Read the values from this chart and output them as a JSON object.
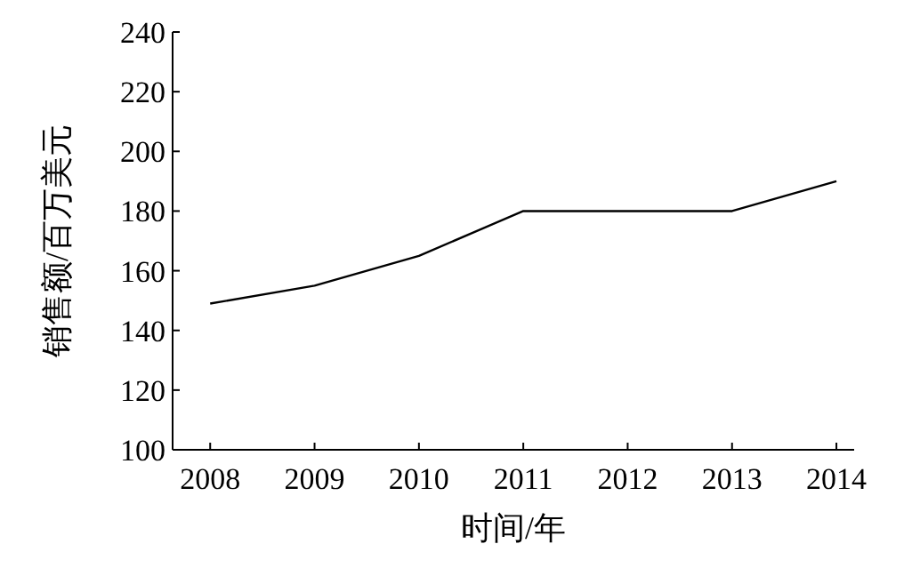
{
  "chart_data": {
    "type": "line",
    "xlabel": "时间/年",
    "ylabel": "销售额/百万美元",
    "x": [
      2008,
      2009,
      2010,
      2011,
      2012,
      2013,
      2014
    ],
    "values": [
      149,
      155,
      165,
      180,
      180,
      180,
      190
    ],
    "color": "#000000",
    "marker": "none",
    "line_style": "solid",
    "xlim": [
      2007.64,
      2014.17
    ],
    "xticks": [
      2008,
      2009,
      2010,
      2011,
      2012,
      2013,
      2014
    ],
    "ylim": [
      100,
      240
    ],
    "yticks": [
      100,
      120,
      140,
      160,
      180,
      200,
      220,
      240
    ],
    "grid": false
  }
}
